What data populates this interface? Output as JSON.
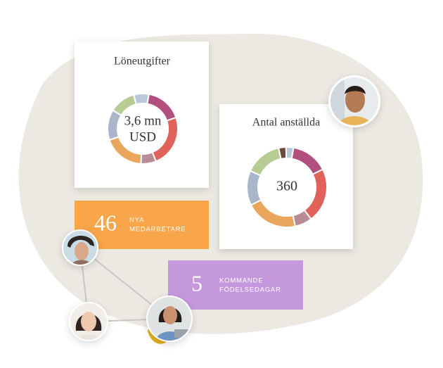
{
  "chart_data": [
    {
      "type": "donut",
      "title": "Löneutgifter",
      "center_label": [
        "3,6 mn",
        "USD"
      ],
      "values": [
        7,
        17,
        24,
        7,
        19,
        14,
        12
      ],
      "colors": [
        "#b9c9d9",
        "#b34f7f",
        "#e0625a",
        "#b98a97",
        "#eba65d",
        "#a9b6c9",
        "#b7cc93"
      ]
    },
    {
      "type": "donut",
      "title": "Antal anställda",
      "center_label": [
        "360"
      ],
      "values": [
        3,
        3,
        15,
        22,
        7,
        21,
        14,
        15
      ],
      "colors": [
        "#6b4a3e",
        "#b9c9d9",
        "#b34f7f",
        "#e0625a",
        "#b98a97",
        "#eba65d",
        "#a9b6c9",
        "#b7cc93"
      ]
    }
  ],
  "stats": [
    {
      "value": 46,
      "label": [
        "NYA",
        "MEDARBETARE"
      ],
      "color": "#f9a64a"
    },
    {
      "value": 5,
      "label": [
        "KOMMANDE",
        "FÖDELSEDAGAR"
      ],
      "color": "#c598de"
    }
  ]
}
